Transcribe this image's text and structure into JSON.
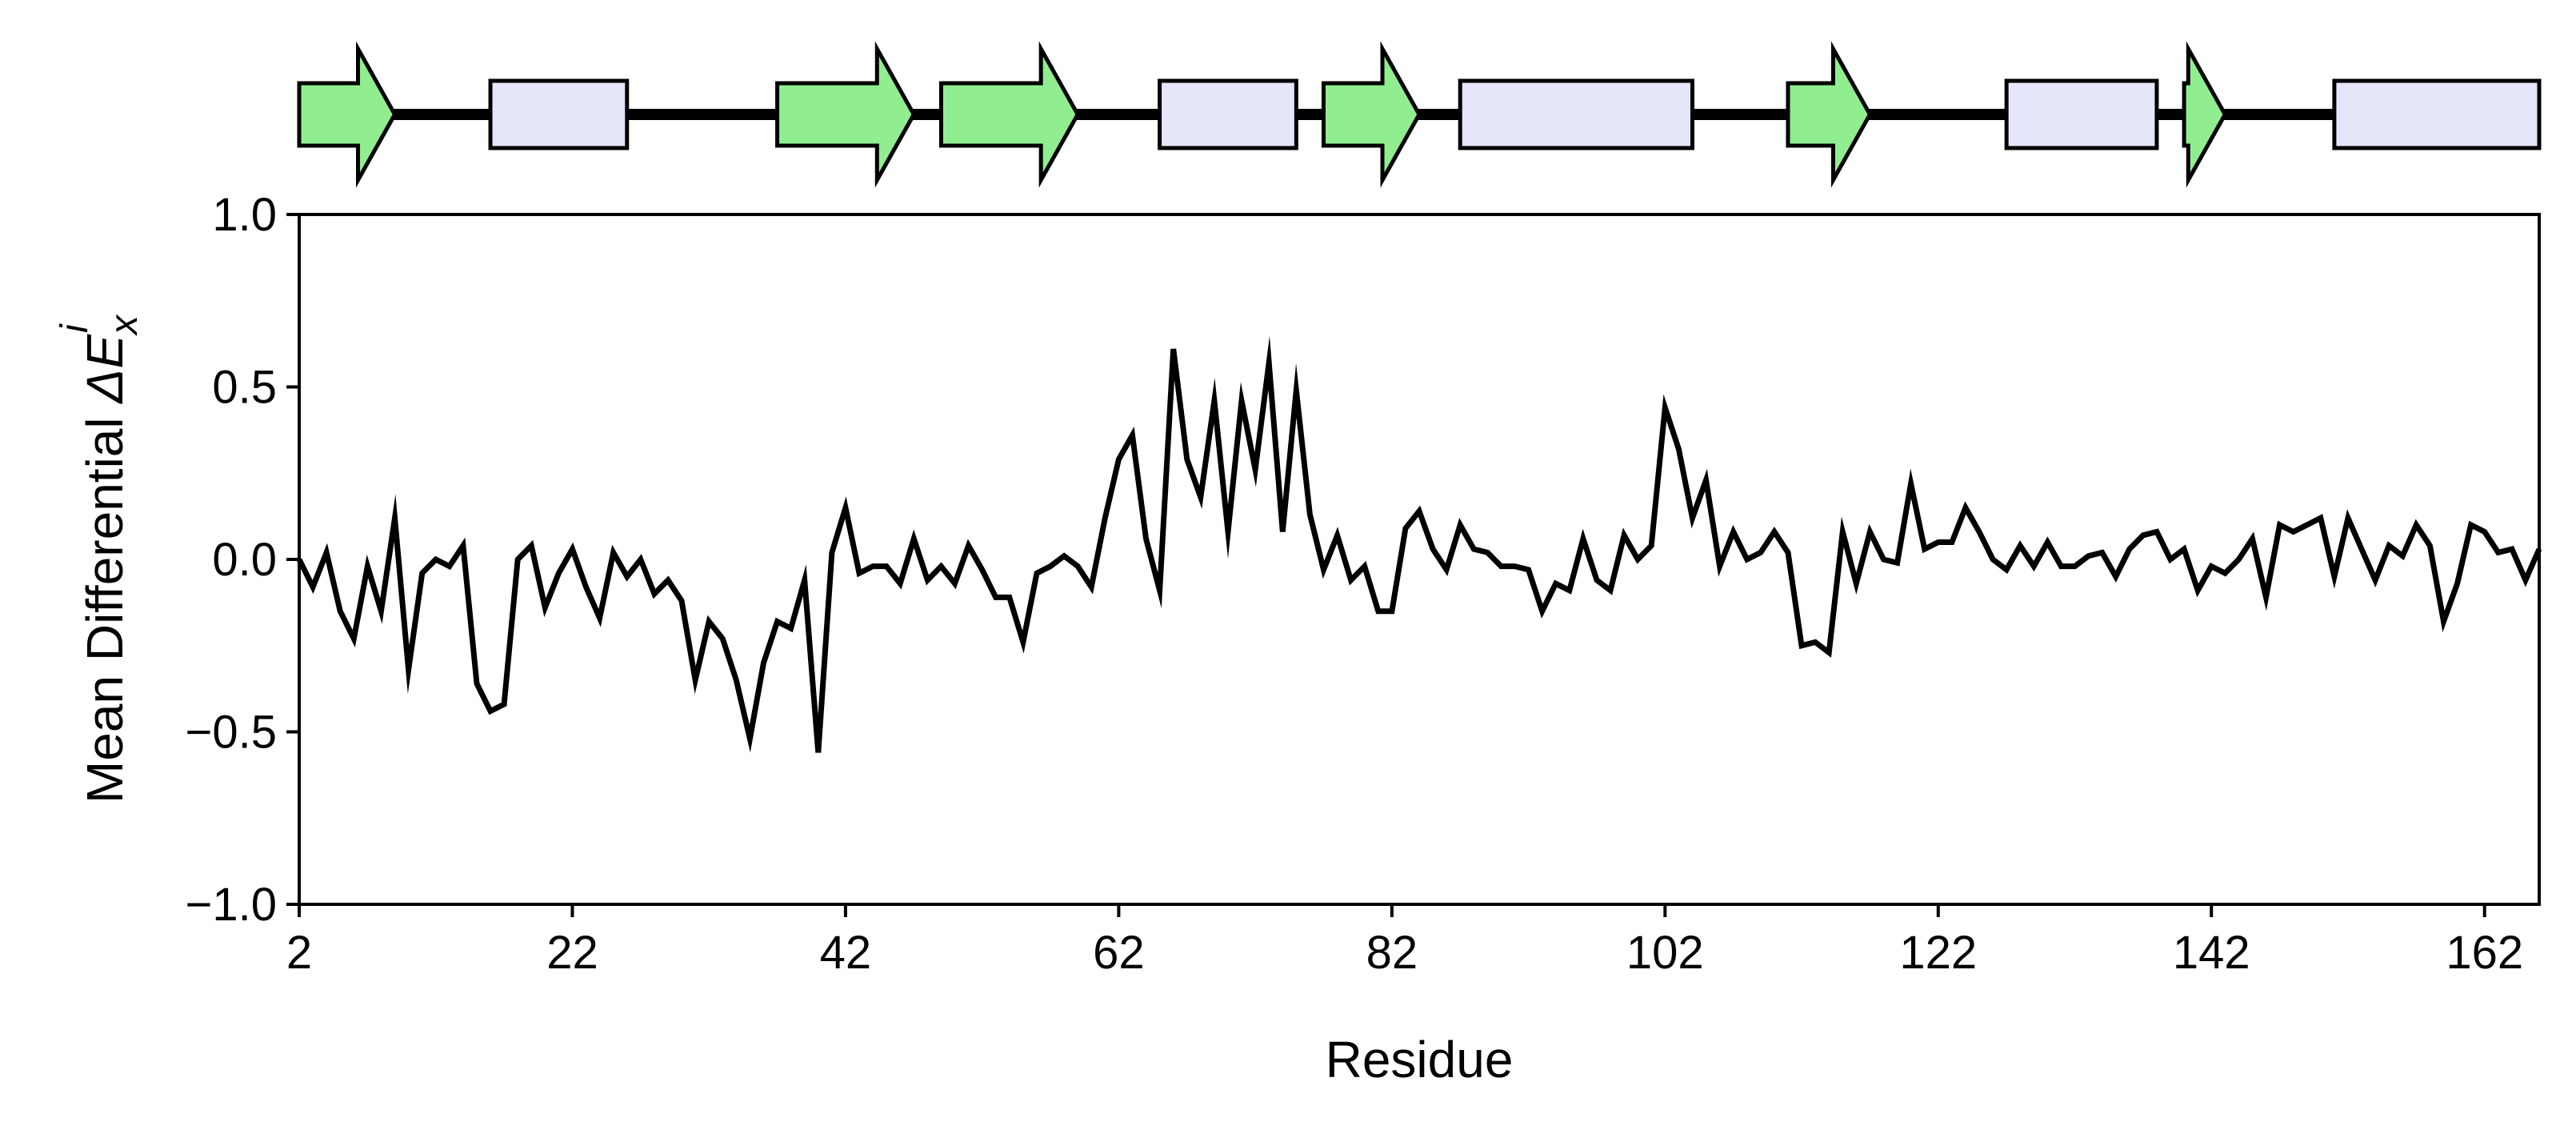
{
  "chart_data": {
    "type": "line",
    "xlabel": "Residue",
    "ylabel": {
      "prefix": "Mean Differential ",
      "symbol": "ΔE",
      "superscript": "i",
      "subscript": "x"
    },
    "xlim": [
      2,
      166
    ],
    "ylim": [
      -1.0,
      1.0
    ],
    "x_ticks": [
      2,
      22,
      42,
      62,
      82,
      102,
      122,
      142,
      162
    ],
    "x_tick_labels": [
      "2",
      "22",
      "42",
      "62",
      "82",
      "102",
      "122",
      "142",
      "162"
    ],
    "y_ticks": [
      -1.0,
      -0.5,
      0.0,
      0.5,
      1.0
    ],
    "y_tick_labels": [
      "−1.0",
      "−0.5",
      "0.0",
      "0.5",
      "1.0"
    ],
    "grid": false,
    "legend": "none",
    "series": [
      {
        "color": "#000000",
        "x_start": 2,
        "x_step": 1,
        "values": [
          0.0,
          -0.08,
          0.02,
          -0.15,
          -0.23,
          -0.02,
          -0.15,
          0.12,
          -0.32,
          -0.04,
          0.0,
          -0.02,
          0.04,
          -0.36,
          -0.44,
          -0.42,
          0.0,
          0.04,
          -0.14,
          -0.04,
          0.03,
          -0.08,
          -0.17,
          0.02,
          -0.05,
          0.0,
          -0.1,
          -0.06,
          -0.12,
          -0.35,
          -0.18,
          -0.23,
          -0.35,
          -0.52,
          -0.3,
          -0.18,
          -0.2,
          -0.06,
          -0.56,
          0.02,
          0.15,
          -0.04,
          -0.02,
          -0.02,
          -0.07,
          0.06,
          -0.06,
          -0.02,
          -0.07,
          0.04,
          -0.03,
          -0.11,
          -0.11,
          -0.24,
          -0.04,
          -0.02,
          0.01,
          -0.02,
          -0.08,
          0.12,
          0.29,
          0.36,
          0.06,
          -0.09,
          0.61,
          0.29,
          0.18,
          0.46,
          0.08,
          0.46,
          0.26,
          0.57,
          0.08,
          0.49,
          0.13,
          -0.03,
          0.07,
          -0.06,
          -0.02,
          -0.15,
          -0.15,
          0.09,
          0.14,
          0.03,
          -0.03,
          0.1,
          0.03,
          0.02,
          -0.02,
          -0.02,
          -0.03,
          -0.15,
          -0.07,
          -0.09,
          0.06,
          -0.06,
          -0.09,
          0.07,
          0.0,
          0.04,
          0.44,
          0.32,
          0.12,
          0.23,
          -0.02,
          0.08,
          0.0,
          0.02,
          0.08,
          0.02,
          -0.25,
          -0.24,
          -0.27,
          0.08,
          -0.07,
          0.08,
          0.0,
          -0.01,
          0.22,
          0.03,
          0.05,
          0.05,
          0.15,
          0.08,
          0.0,
          -0.03,
          0.04,
          -0.02,
          0.05,
          -0.02,
          -0.02,
          0.01,
          0.02,
          -0.05,
          0.03,
          0.07,
          0.08,
          0.0,
          0.03,
          -0.09,
          -0.02,
          -0.04,
          0.0,
          0.06,
          -0.11,
          0.1,
          0.08,
          0.1,
          0.12,
          -0.05,
          0.12,
          0.03,
          -0.06,
          0.04,
          0.01,
          0.1,
          0.04,
          -0.18,
          -0.07,
          0.1,
          0.08,
          0.02,
          0.03,
          -0.06,
          0.03
        ]
      }
    ],
    "secondary_structure": {
      "track": "above plot",
      "colors": {
        "strand": "#90ee90",
        "helix": "#e6e6fa",
        "outline": "#000000"
      },
      "elements": [
        {
          "type": "strand",
          "start": 2,
          "end": 9
        },
        {
          "type": "helix",
          "start": 16,
          "end": 26
        },
        {
          "type": "strand",
          "start": 37,
          "end": 47
        },
        {
          "type": "strand",
          "start": 49,
          "end": 59
        },
        {
          "type": "helix",
          "start": 65,
          "end": 75
        },
        {
          "type": "strand",
          "start": 77,
          "end": 84
        },
        {
          "type": "helix",
          "start": 87,
          "end": 104
        },
        {
          "type": "strand",
          "start": 111,
          "end": 117
        },
        {
          "type": "helix",
          "start": 127,
          "end": 138
        },
        {
          "type": "strand",
          "start": 140,
          "end": 143
        },
        {
          "type": "helix",
          "start": 151,
          "end": 166
        }
      ]
    }
  }
}
